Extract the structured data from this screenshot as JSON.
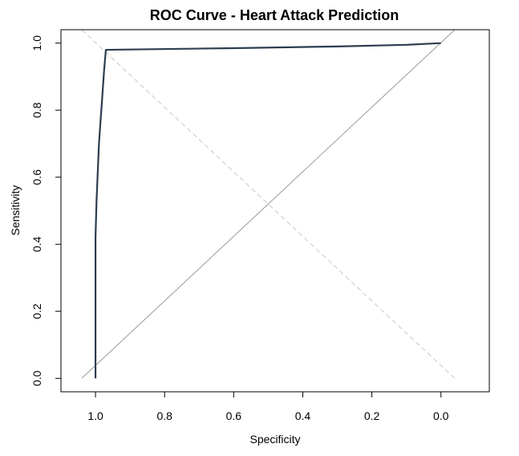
{
  "chart_data": {
    "type": "line",
    "title": "ROC Curve - Heart Attack Prediction",
    "xlabel": "Specificity",
    "ylabel": "Sensitivity",
    "xlim": [
      1.1,
      -0.14
    ],
    "ylim": [
      -0.04,
      1.04
    ],
    "x_reversed": true,
    "x_ticks": [
      1.0,
      0.8,
      0.6,
      0.4,
      0.2,
      0.0
    ],
    "x_tick_labels": [
      "1.0",
      "0.8",
      "0.6",
      "0.4",
      "0.2",
      "0.0"
    ],
    "y_ticks": [
      0.0,
      0.2,
      0.4,
      0.6,
      0.8,
      1.0
    ],
    "y_tick_labels": [
      "0.0",
      "0.2",
      "0.4",
      "0.6",
      "0.8",
      "1.0"
    ],
    "grid": false,
    "series": [
      {
        "color": "#2c3e50",
        "points": [
          [
            1.0,
            0.0
          ],
          [
            1.0,
            0.42
          ],
          [
            0.997,
            0.53
          ],
          [
            0.99,
            0.7
          ],
          [
            0.975,
            0.92
          ],
          [
            0.97,
            0.98
          ],
          [
            0.6,
            0.985
          ],
          [
            0.3,
            0.99
          ],
          [
            0.1,
            0.995
          ],
          [
            0.0,
            1.0
          ]
        ]
      }
    ],
    "reference_lines": [
      {
        "from": [
          1.04,
          0.0
        ],
        "to": [
          -0.04,
          1.04
        ],
        "color": "#9a9a9a",
        "dash": false
      },
      {
        "from": [
          1.04,
          1.04
        ],
        "to": [
          -0.04,
          0.0
        ],
        "color": "#c8c8c8",
        "dash": true
      }
    ]
  }
}
